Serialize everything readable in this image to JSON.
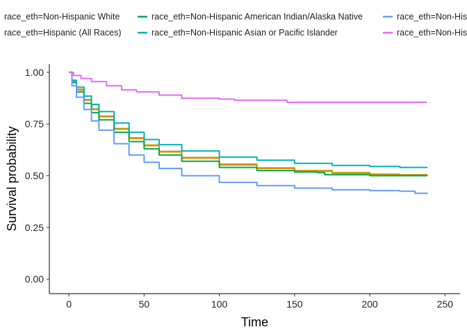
{
  "chart_data": {
    "type": "line",
    "title": "",
    "xlabel": "Time",
    "ylabel": "Survival probability",
    "xlim": [
      -13,
      260
    ],
    "ylim": [
      -0.07,
      1.04
    ],
    "x_ticks": [
      "0",
      "50",
      "100",
      "150",
      "200",
      "250"
    ],
    "y_ticks": [
      "0.00",
      "0.25",
      "0.50",
      "0.75",
      "1.00"
    ],
    "grid": false,
    "legend_position": "top",
    "series": [
      {
        "name": "race_eth=Non-Hispanic White",
        "color": "#E58700",
        "points": [
          [
            0,
            1.0
          ],
          [
            2,
            0.955
          ],
          [
            5,
            0.915
          ],
          [
            10,
            0.865
          ],
          [
            15,
            0.82
          ],
          [
            20,
            0.785
          ],
          [
            30,
            0.725
          ],
          [
            40,
            0.68
          ],
          [
            50,
            0.645
          ],
          [
            60,
            0.615
          ],
          [
            75,
            0.585
          ],
          [
            100,
            0.552
          ],
          [
            125,
            0.535
          ],
          [
            150,
            0.522
          ],
          [
            175,
            0.512
          ],
          [
            200,
            0.506
          ],
          [
            220,
            0.503
          ],
          [
            238,
            0.502
          ]
        ]
      },
      {
        "name": "race_eth=Hispanic (All Races)",
        "color": "#C99800",
        "points": [
          [
            0,
            1.0
          ],
          [
            2,
            0.958
          ],
          [
            5,
            0.918
          ],
          [
            10,
            0.868
          ],
          [
            15,
            0.823
          ],
          [
            20,
            0.788
          ],
          [
            30,
            0.728
          ],
          [
            40,
            0.683
          ],
          [
            50,
            0.648
          ],
          [
            60,
            0.618
          ],
          [
            75,
            0.588
          ],
          [
            100,
            0.556
          ],
          [
            125,
            0.538
          ],
          [
            150,
            0.525
          ],
          [
            175,
            0.515
          ],
          [
            200,
            0.508
          ],
          [
            220,
            0.505
          ],
          [
            238,
            0.504
          ]
        ]
      },
      {
        "name": "race_eth=Non-Hispanic American Indian/Alaska Native",
        "color": "#00A84A",
        "points": [
          [
            0,
            1.0
          ],
          [
            2,
            0.95
          ],
          [
            5,
            0.905
          ],
          [
            10,
            0.85
          ],
          [
            15,
            0.805
          ],
          [
            20,
            0.77
          ],
          [
            30,
            0.71
          ],
          [
            40,
            0.665
          ],
          [
            50,
            0.63
          ],
          [
            60,
            0.6
          ],
          [
            75,
            0.57
          ],
          [
            100,
            0.54
          ],
          [
            125,
            0.525
          ],
          [
            150,
            0.518
          ],
          [
            165,
            0.515
          ],
          [
            170,
            0.505
          ],
          [
            200,
            0.5
          ],
          [
            238,
            0.498
          ]
        ]
      },
      {
        "name": "race_eth=Non-Hispanic Asian or Pacific Islander",
        "color": "#00B2B5",
        "points": [
          [
            0,
            1.0
          ],
          [
            2,
            0.962
          ],
          [
            5,
            0.928
          ],
          [
            10,
            0.885
          ],
          [
            15,
            0.845
          ],
          [
            20,
            0.81
          ],
          [
            30,
            0.755
          ],
          [
            40,
            0.71
          ],
          [
            50,
            0.675
          ],
          [
            60,
            0.65
          ],
          [
            75,
            0.62
          ],
          [
            100,
            0.59
          ],
          [
            125,
            0.575
          ],
          [
            150,
            0.56
          ],
          [
            175,
            0.55
          ],
          [
            200,
            0.545
          ],
          [
            220,
            0.54
          ],
          [
            238,
            0.538
          ]
        ]
      },
      {
        "name": "race_eth=Non-Hispanic Black",
        "color": "#619CFF",
        "points": [
          [
            0,
            1.0
          ],
          [
            2,
            0.935
          ],
          [
            5,
            0.88
          ],
          [
            10,
            0.82
          ],
          [
            15,
            0.765
          ],
          [
            20,
            0.72
          ],
          [
            30,
            0.655
          ],
          [
            40,
            0.6
          ],
          [
            50,
            0.565
          ],
          [
            60,
            0.535
          ],
          [
            75,
            0.5
          ],
          [
            100,
            0.468
          ],
          [
            125,
            0.452
          ],
          [
            150,
            0.44
          ],
          [
            175,
            0.432
          ],
          [
            200,
            0.428
          ],
          [
            220,
            0.425
          ],
          [
            230,
            0.415
          ],
          [
            238,
            0.41
          ]
        ]
      },
      {
        "name": "race_eth=Non-Hispanic Unknown Race",
        "color": "#E76BF3",
        "points": [
          [
            0,
            1.0
          ],
          [
            3,
            0.985
          ],
          [
            8,
            0.97
          ],
          [
            15,
            0.955
          ],
          [
            25,
            0.935
          ],
          [
            35,
            0.915
          ],
          [
            45,
            0.905
          ],
          [
            60,
            0.89
          ],
          [
            75,
            0.875
          ],
          [
            100,
            0.87
          ],
          [
            110,
            0.865
          ],
          [
            140,
            0.865
          ],
          [
            145,
            0.855
          ],
          [
            200,
            0.855
          ],
          [
            238,
            0.855
          ]
        ]
      }
    ]
  }
}
